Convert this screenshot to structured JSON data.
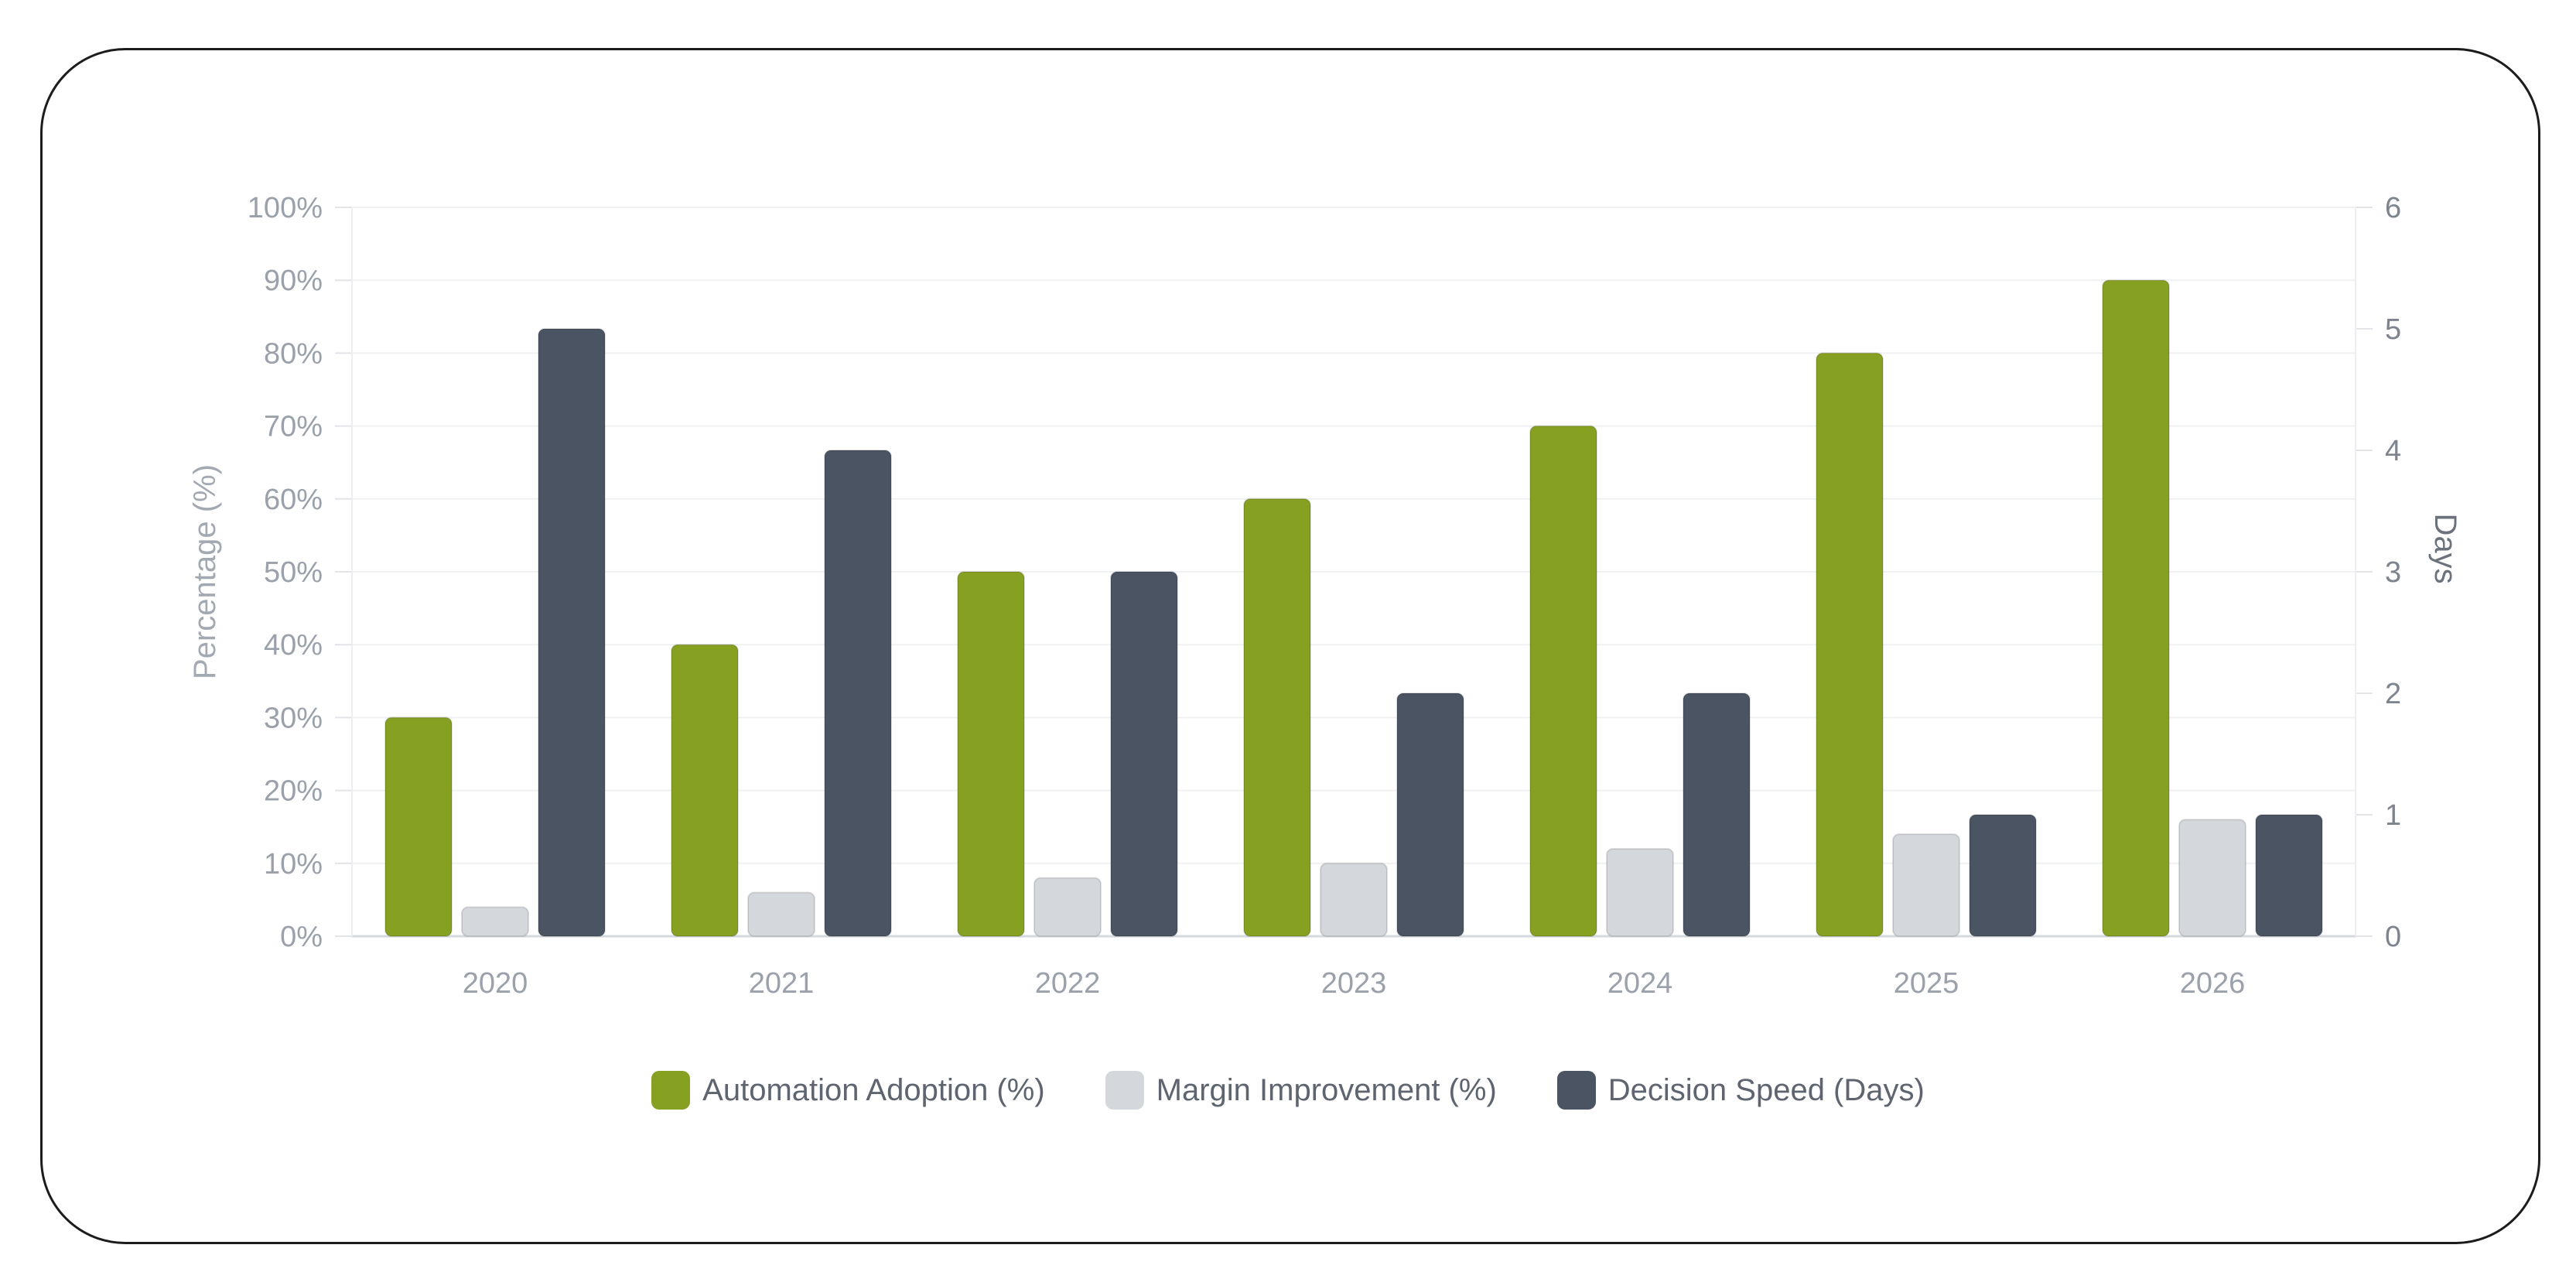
{
  "chart_data": {
    "type": "bar",
    "categories": [
      "2020",
      "2021",
      "2022",
      "2023",
      "2024",
      "2025",
      "2026"
    ],
    "series": [
      {
        "name": "Automation Adoption (%)",
        "axis": "left",
        "color": "#86a022",
        "values": [
          30,
          40,
          50,
          60,
          70,
          80,
          90
        ]
      },
      {
        "name": "Margin Improvement (%)",
        "axis": "left",
        "color": "#d4d7db",
        "values": [
          4,
          6,
          8,
          10,
          12,
          14,
          16
        ]
      },
      {
        "name": "Decision Speed (Days)",
        "axis": "right",
        "color": "#4a5462",
        "values": [
          5,
          4,
          3,
          2,
          2,
          1,
          1
        ]
      }
    ],
    "ylabel": "Percentage (%)",
    "ylabel_right": "Days",
    "ylim": [
      0,
      100
    ],
    "ylim_right": [
      0,
      6
    ],
    "yticks": [
      "0%",
      "10%",
      "20%",
      "30%",
      "40%",
      "50%",
      "60%",
      "70%",
      "80%",
      "90%",
      "100%"
    ],
    "yticks_right": [
      "0",
      "1",
      "2",
      "3",
      "4",
      "5",
      "6"
    ],
    "grid": true,
    "legend_position": "bottom"
  }
}
